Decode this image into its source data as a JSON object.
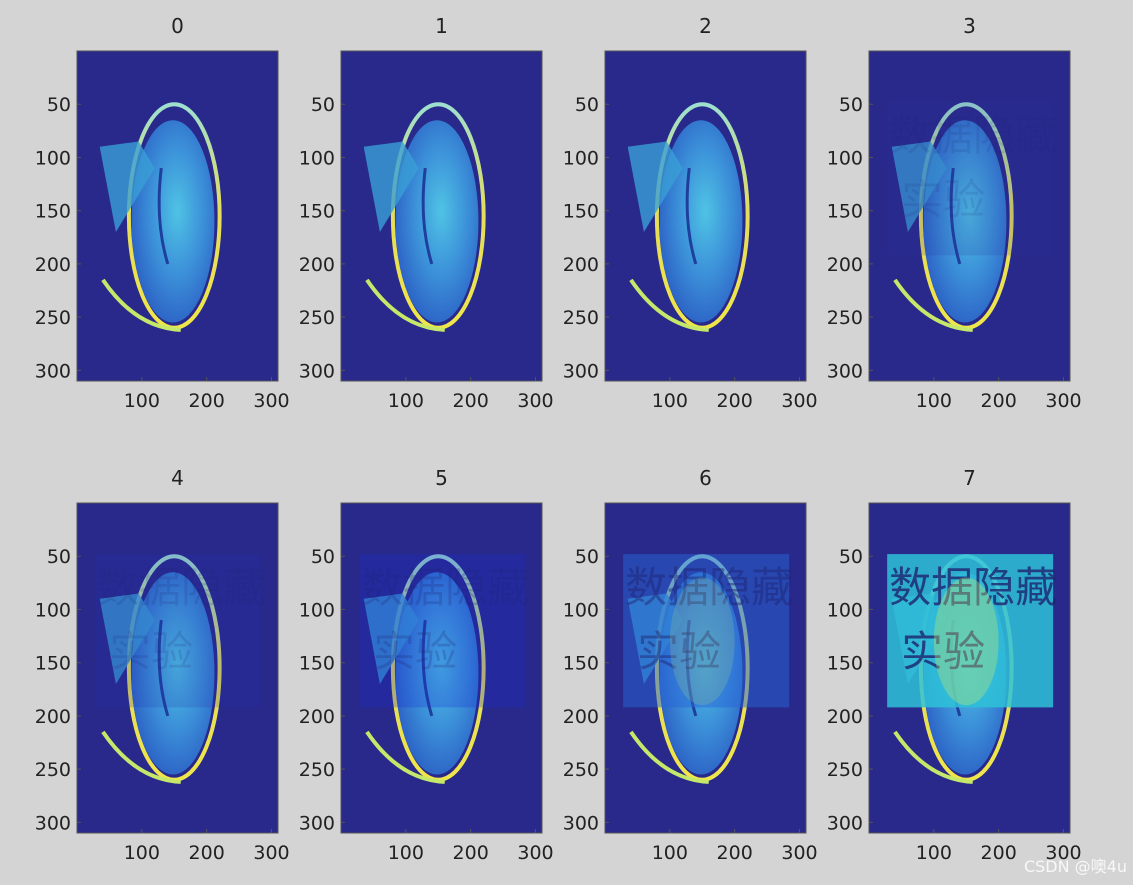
{
  "figure": {
    "background": "#d4d4d4",
    "colormap": "jet",
    "watermark": "CSDN @噢4u"
  },
  "chart_data": {
    "type": "image-grid",
    "rows": 2,
    "cols": 4,
    "xticks": [
      "100",
      "200",
      "300"
    ],
    "yticks": [
      "50",
      "100",
      "150",
      "200",
      "250",
      "300"
    ],
    "xlim": [
      0,
      310
    ],
    "ylim": [
      0,
      310
    ],
    "grid": false,
    "colors": {
      "background": "#28298a",
      "brain": "#3b8ed8",
      "brain_bright": "#4fc3e5",
      "highlight": "#c6e86a",
      "rim": "#e5dc5a"
    },
    "watermark_text": "数据隐藏\n实验",
    "watermark_box": {
      "x": [
        28,
        284
      ],
      "y": [
        48,
        192
      ]
    },
    "panels": [
      {
        "title": "0",
        "watermark_level": 0.0,
        "box_color": "#28298a"
      },
      {
        "title": "1",
        "watermark_level": 0.0,
        "box_color": "#28298a"
      },
      {
        "title": "2",
        "watermark_level": 0.0,
        "box_color": "#28298a"
      },
      {
        "title": "3",
        "watermark_level": 0.02,
        "box_color": "#2a2da0"
      },
      {
        "title": "4",
        "watermark_level": 0.05,
        "box_color": "#2330b5"
      },
      {
        "title": "5",
        "watermark_level": 0.12,
        "box_color": "#1a2fd5"
      },
      {
        "title": "6",
        "watermark_level": 0.35,
        "box_color": "#2766d8"
      },
      {
        "title": "7",
        "watermark_level": 0.7,
        "box_color": "#2ec2d8"
      }
    ]
  }
}
